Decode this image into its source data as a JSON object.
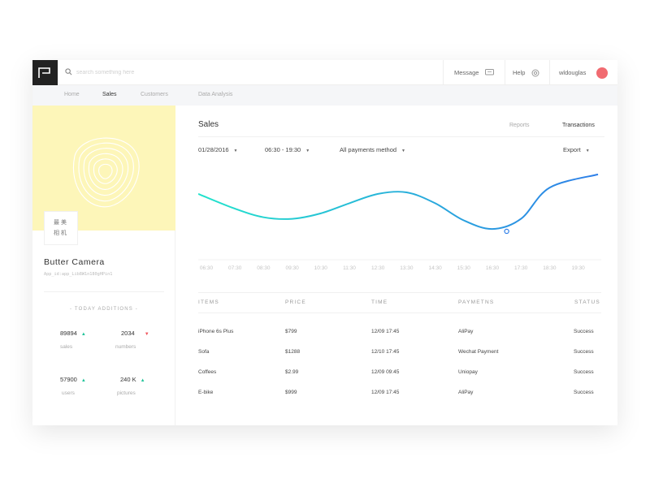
{
  "search": {
    "placeholder": "search something here"
  },
  "topbar": {
    "message_label": "Message",
    "help_label": "Help",
    "username": "wldouglas",
    "avatar_color": "#f16b71"
  },
  "nav": {
    "items": [
      "Home",
      "Sales",
      "Customers",
      "Data Analysis"
    ],
    "active": "Sales"
  },
  "company": {
    "badge_line1": "最美",
    "badge_line2": "相机",
    "name": "Butter Camera",
    "app_id": "App_id:app_Lib8W1n180gHPin1"
  },
  "today": {
    "heading": "- TODAY ADDITIONS -",
    "stats": [
      {
        "value": "89894",
        "label": "sales",
        "trend": "up"
      },
      {
        "value": "2034",
        "label": "numbers",
        "trend": "down"
      },
      {
        "value": "57900",
        "label": "users",
        "trend": "up"
      },
      {
        "value": "240 K",
        "label": "pictures",
        "trend": "up"
      }
    ]
  },
  "main": {
    "title": "Sales",
    "tabs": [
      "Reports",
      "Transactions"
    ],
    "active_tab": "Transactions",
    "filters": {
      "date": "01/28/2016",
      "time": "06:30 - 19:30",
      "payment": "All payments method",
      "export": "Export"
    }
  },
  "colors": {
    "line_start": "#22e3cc",
    "line_end": "#2e7fe8",
    "banner": "#fdf6b9",
    "up": "#21c49a",
    "down": "#f0555d"
  },
  "chart_data": {
    "type": "line",
    "categories": [
      "06:30",
      "07:30",
      "08:30",
      "09:30",
      "10:30",
      "11:30",
      "12:30",
      "13:30",
      "14:30",
      "15:30",
      "16:30",
      "17:30",
      "18:30",
      "19:30"
    ],
    "values": [
      0.72,
      0.53,
      0.42,
      0.4,
      0.47,
      0.6,
      0.72,
      0.74,
      0.6,
      0.38,
      0.27,
      0.4,
      0.8,
      0.97
    ],
    "ylim": [
      0,
      1
    ],
    "highlight": {
      "x": "17:00",
      "value": 0.24
    },
    "grid": false
  },
  "table": {
    "headers": [
      "ITEMS",
      "PRICE",
      "TIME",
      "PAYMETNS",
      "STATUS"
    ],
    "rows": [
      [
        "iPhone 6s Plus",
        "$799",
        "12/09 17:45",
        "AliPay",
        "Success"
      ],
      [
        "Sofa",
        "$1288",
        "12/10 17:45",
        "Wechat Payment",
        "Success"
      ],
      [
        "Coffees",
        "$2.99",
        "12/09 09:45",
        "Uniopay",
        "Success"
      ],
      [
        "E-bike",
        "$999",
        "12/09 17:45",
        "AliPay",
        "Success"
      ]
    ]
  }
}
